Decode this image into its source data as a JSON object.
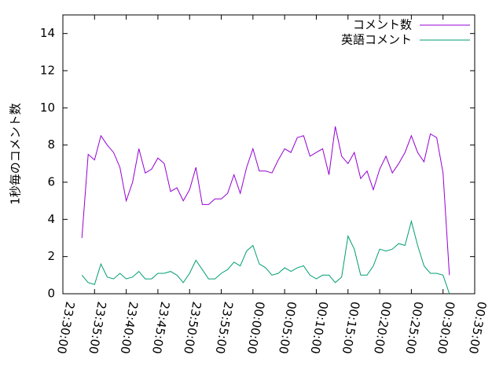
{
  "chart_data": {
    "type": "line",
    "ylabel": "1秒毎のコメント数",
    "x": [
      "23:33:00",
      "23:34:00",
      "23:35:00",
      "23:36:00",
      "23:37:00",
      "23:38:00",
      "23:39:00",
      "23:40:00",
      "23:41:00",
      "23:42:00",
      "23:43:00",
      "23:44:00",
      "23:45:00",
      "23:46:00",
      "23:47:00",
      "23:48:00",
      "23:49:00",
      "23:50:00",
      "23:51:00",
      "23:52:00",
      "23:53:00",
      "23:54:00",
      "23:55:00",
      "23:56:00",
      "23:57:00",
      "23:58:00",
      "23:59:00",
      "00:00:00",
      "00:01:00",
      "00:02:00",
      "00:03:00",
      "00:04:00",
      "00:05:00",
      "00:06:00",
      "00:07:00",
      "00:08:00",
      "00:09:00",
      "00:10:00",
      "00:11:00",
      "00:12:00",
      "00:13:00",
      "00:14:00",
      "00:15:00",
      "00:16:00",
      "00:17:00",
      "00:18:00",
      "00:19:00",
      "00:20:00",
      "00:21:00",
      "00:22:00",
      "00:23:00",
      "00:24:00",
      "00:25:00",
      "00:26:00",
      "00:27:00",
      "00:28:00",
      "00:29:00",
      "00:30:00",
      "00:31:00"
    ],
    "series": [
      {
        "name": "コメント数",
        "color": "#9400d3",
        "values": [
          3.0,
          7.5,
          7.2,
          8.5,
          8.0,
          7.6,
          6.8,
          5.0,
          6.0,
          7.8,
          6.5,
          6.7,
          7.3,
          7.0,
          5.5,
          5.7,
          5.0,
          5.6,
          6.8,
          4.8,
          4.8,
          5.1,
          5.1,
          5.4,
          6.4,
          5.4,
          6.8,
          7.8,
          6.6,
          6.6,
          6.5,
          7.2,
          7.8,
          7.6,
          8.4,
          8.5,
          7.4,
          7.6,
          7.8,
          6.4,
          9.0,
          7.4,
          7.0,
          7.6,
          6.2,
          6.6,
          5.6,
          6.7,
          7.4,
          6.5,
          7.0,
          7.6,
          8.5,
          7.6,
          7.1,
          8.6,
          8.4,
          6.5,
          1.0
        ]
      },
      {
        "name": "英語コメント",
        "color": "#009e73",
        "values": [
          1.0,
          0.6,
          0.5,
          1.6,
          0.9,
          0.8,
          1.1,
          0.8,
          0.9,
          1.2,
          0.8,
          0.8,
          1.1,
          1.1,
          1.2,
          1.0,
          0.6,
          1.1,
          1.8,
          1.3,
          0.8,
          0.8,
          1.1,
          1.3,
          1.7,
          1.5,
          2.3,
          2.6,
          1.6,
          1.4,
          1.0,
          1.1,
          1.4,
          1.2,
          1.4,
          1.5,
          1.0,
          0.8,
          1.0,
          1.0,
          0.6,
          0.9,
          3.1,
          2.4,
          1.0,
          1.0,
          1.5,
          2.4,
          2.3,
          2.4,
          2.7,
          2.6,
          3.9,
          2.6,
          1.5,
          1.1,
          1.1,
          1.0,
          0.0
        ]
      }
    ],
    "xlim": [
      "23:30:00",
      "00:35:00"
    ],
    "xticks": [
      "23:30:00",
      "23:35:00",
      "23:40:00",
      "23:45:00",
      "23:50:00",
      "23:55:00",
      "00:00:00",
      "00:05:00",
      "00:10:00",
      "00:15:00",
      "00:20:00",
      "00:25:00",
      "00:30:00",
      "00:35:00"
    ],
    "ylim": [
      0,
      15
    ],
    "yticks": [
      0,
      2,
      4,
      6,
      8,
      10,
      12,
      14
    ],
    "legend": "upper right"
  }
}
